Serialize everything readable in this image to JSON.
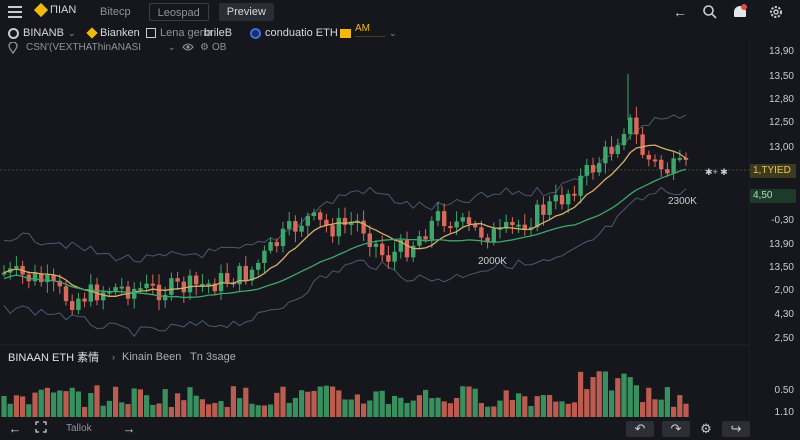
{
  "topbar": {
    "brand": "ΠIAN",
    "tabs": [
      "Bitecp",
      "Leospad",
      "Preview"
    ]
  },
  "symbols": [
    {
      "label": "BINANB"
    },
    {
      "label": "Bianken"
    },
    {
      "label": "Lena gena"
    },
    {
      "label": "brileB"
    },
    {
      "label": "conduatio ETH"
    },
    {
      "label": "AM",
      "sub": "—————"
    }
  ],
  "info_row": {
    "label": "CSN'(VEXTHAThinANASI",
    "value": "OB"
  },
  "price_axis": [
    "13,90",
    "13,50",
    "12,80",
    "12,50",
    "13,00",
    "4,50",
    "-0,30",
    "13,90",
    "13,50",
    "2,00",
    "4,30",
    "2,50",
    "0.50",
    "1.10"
  ],
  "price_tags": {
    "current": "1,TYIED",
    "secondary": "4,50",
    "marker": "✱+ ✱"
  },
  "annotations": {
    "a1": "2300K",
    "a2": "2000K"
  },
  "volume_pane": {
    "title": "BINAAN ETH 素情",
    "indicator1": "Kinain Been",
    "indicator2": "Tn 3sage"
  },
  "bottombar": {
    "timeframe": "Tallok"
  },
  "colors": {
    "background": "#15171c",
    "up": "#3fa66b",
    "down": "#d9695a",
    "accent": "#f0b90b",
    "ma_fast": "#d6b06a",
    "ma_slow": "#3fa66b",
    "band": "#5a6a8a"
  }
}
